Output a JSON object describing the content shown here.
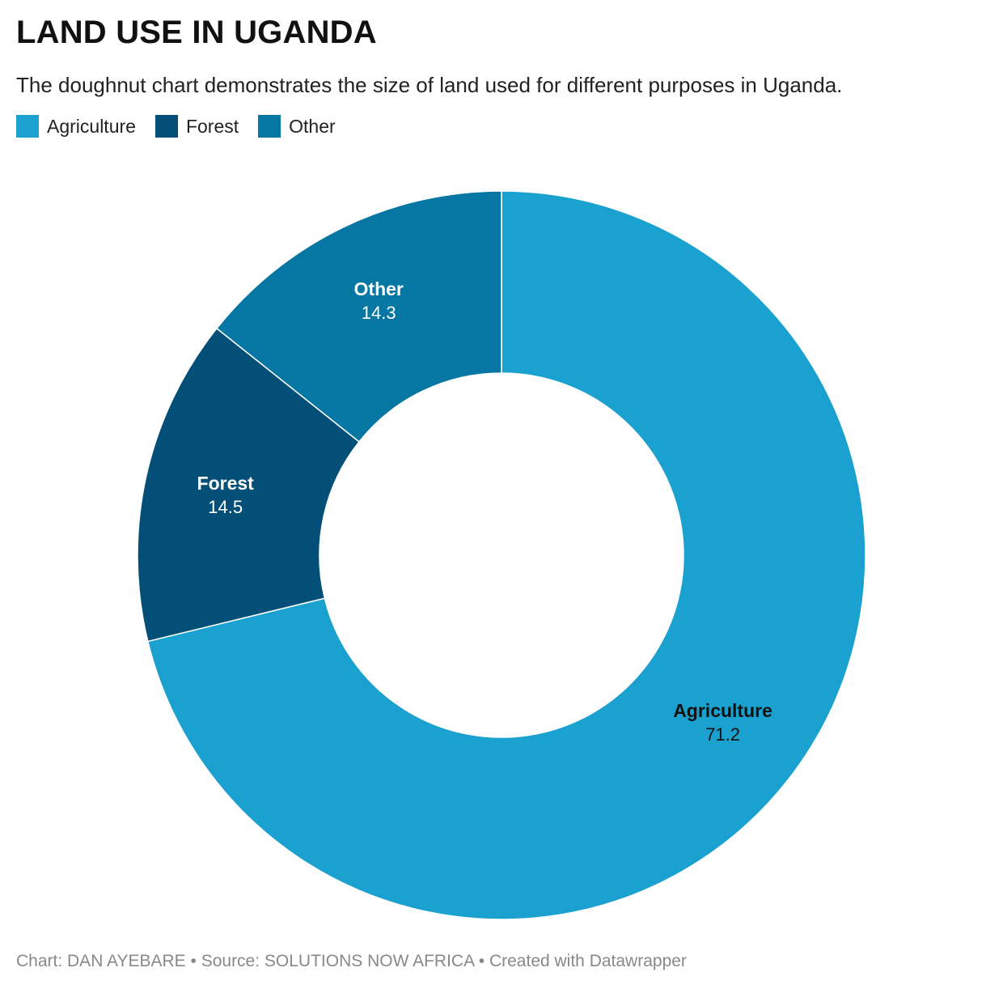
{
  "title": "LAND USE IN UGANDA",
  "subtitle": "The doughnut chart demonstrates the size of land used for different purposes in Uganda.",
  "footer": "Chart: DAN AYEBARE • Source: SOLUTIONS NOW AFRICA • Created with Datawrapper",
  "legend": [
    {
      "label": "Agriculture",
      "color": "#1ba1cf"
    },
    {
      "label": "Forest",
      "color": "#034f78"
    },
    {
      "label": "Other",
      "color": "#0676a3"
    }
  ],
  "chart_data": {
    "type": "pie",
    "variant": "doughnut",
    "title": "LAND USE IN UGANDA",
    "categories": [
      "Agriculture",
      "Forest",
      "Other"
    ],
    "values": [
      71.2,
      14.5,
      14.3
    ],
    "colors": [
      "#1ba1cf",
      "#034f78",
      "#0676a3"
    ],
    "label_colors": [
      "#111111",
      "#ffffff",
      "#ffffff"
    ],
    "legend_position": "top-left"
  }
}
